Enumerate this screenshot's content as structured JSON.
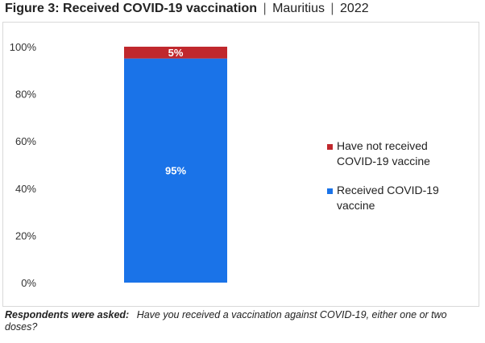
{
  "header": {
    "title_bold": "Figure 3: Received COVID-19 vaccination",
    "separator": "|",
    "country": "Mauritius",
    "year": "2022"
  },
  "footnote": {
    "lead": "Respondents were asked:",
    "question": "Have you received a vaccination against COVID-19, either one or two doses?"
  },
  "colors": {
    "received": "#1a73e8",
    "not_received": "#c0282d"
  },
  "chart_data": {
    "type": "bar",
    "stacked": true,
    "categories": [
      ""
    ],
    "ylim": [
      0,
      100
    ],
    "yticks": [
      "0%",
      "20%",
      "40%",
      "60%",
      "80%",
      "100%"
    ],
    "grid": false,
    "legend_position": "right",
    "series": [
      {
        "name": "Received COVID-19 vaccine",
        "values": [
          95
        ],
        "label": "95%",
        "color": "#1a73e8"
      },
      {
        "name": "Have not received COVID-19 vaccine",
        "values": [
          5
        ],
        "label": "5%",
        "color": "#c0282d"
      }
    ],
    "legend": [
      {
        "series": 1,
        "lines": [
          "Have not received",
          "COVID-19 vaccine"
        ]
      },
      {
        "series": 0,
        "lines": [
          "Received COVID-19",
          "vaccine"
        ]
      }
    ]
  }
}
